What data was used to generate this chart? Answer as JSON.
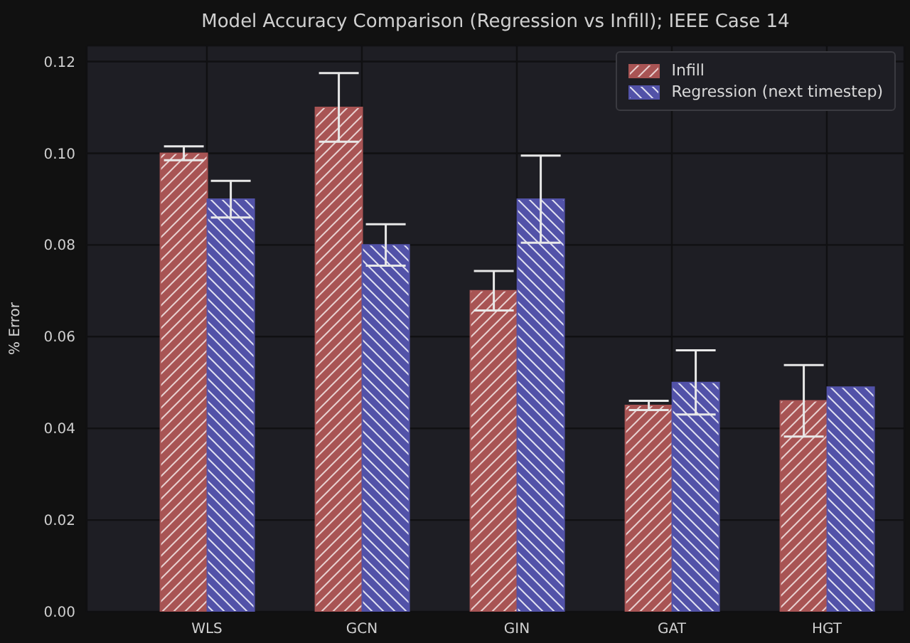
{
  "chart_data": {
    "type": "bar",
    "title": "Model Accuracy Comparison (Regression vs Infill); IEEE Case 14",
    "ylabel": "% Error",
    "categories": [
      "WLS",
      "GCN",
      "GIN",
      "GAT",
      "HGT"
    ],
    "series": [
      {
        "name": "Infill",
        "color": "#a85454",
        "values": [
          0.1,
          0.11,
          0.07,
          0.045,
          0.046
        ],
        "errors": [
          0.0015,
          0.0075,
          0.0043,
          0.001,
          0.0078
        ]
      },
      {
        "name": "Regression (next timestep)",
        "color": "#5252a8",
        "values": [
          0.09,
          0.08,
          0.09,
          0.05,
          0.049
        ],
        "errors": [
          0.004,
          0.0045,
          0.0095,
          0.007,
          0
        ]
      }
    ],
    "ylim": [
      0,
      0.1235
    ],
    "yticks": [
      {
        "value": 0,
        "label": "0.00"
      },
      {
        "value": 0.02,
        "label": "0.02"
      },
      {
        "value": 0.04,
        "label": "0.04"
      },
      {
        "value": 0.06,
        "label": "0.06"
      },
      {
        "value": 0.08,
        "label": "0.08"
      },
      {
        "value": 0.1,
        "label": "0.10"
      },
      {
        "value": 0.12,
        "label": "0.12"
      }
    ],
    "grid": true,
    "legend": "top right"
  }
}
